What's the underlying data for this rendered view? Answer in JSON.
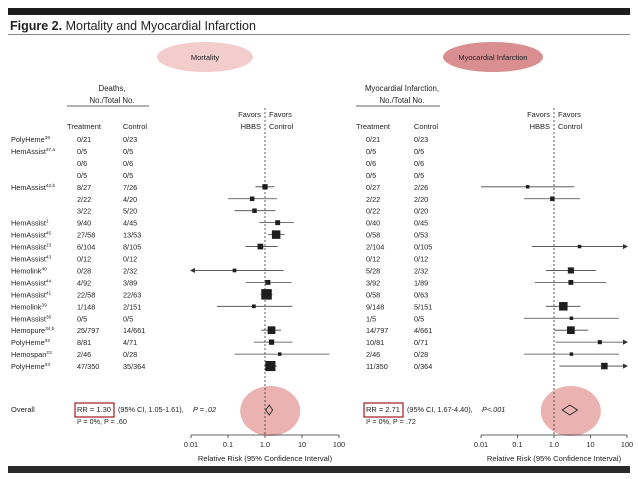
{
  "figure": {
    "label": "Figure 2.",
    "title": "Mortality and Myocardial Infarction"
  },
  "colors": {
    "mortality_oval": "#f3cccc",
    "mi_oval": "#d98f8f",
    "highlight_oval": "#e8a5a5",
    "box_outline": "#a01c1c",
    "ink": "#222222"
  },
  "studies": [
    {
      "name": "PolyHeme",
      "sup": "38"
    },
    {
      "name": "HemAssist",
      "sup": "37,a"
    },
    {
      "name": "",
      "sup": ""
    },
    {
      "name": "",
      "sup": ""
    },
    {
      "name": "HemAssist",
      "sup": "42,b"
    },
    {
      "name": "",
      "sup": ""
    },
    {
      "name": "",
      "sup": ""
    },
    {
      "name": "HemAssist",
      "sup": "1"
    },
    {
      "name": "HemAssist",
      "sup": "45"
    },
    {
      "name": "HemAssist",
      "sup": "13"
    },
    {
      "name": "HemAssist",
      "sup": "43"
    },
    {
      "name": "Hemolink",
      "sup": "40"
    },
    {
      "name": "HemAssist",
      "sup": "44"
    },
    {
      "name": "HemAssist",
      "sup": "41"
    },
    {
      "name": "Hemolink",
      "sup": "39"
    },
    {
      "name": "HemAssist",
      "sup": "36"
    },
    {
      "name": "Hemopure",
      "sup": "34,b"
    },
    {
      "name": "PolyHeme",
      "sup": "32"
    },
    {
      "name": "Hemospan",
      "sup": "23"
    },
    {
      "name": "PolyHeme",
      "sup": "33"
    }
  ],
  "chart_data": [
    {
      "type": "forest",
      "panel_title": "Mortality",
      "header": [
        "Deaths,",
        "No./Total No."
      ],
      "col_labels": [
        "Treatment",
        "Control"
      ],
      "favors": {
        "left": [
          "Favors",
          "HBBS"
        ],
        "right": [
          "Favors",
          "Control"
        ]
      },
      "treatment": [
        "0/21",
        "0/5",
        "0/6",
        "0/5",
        "8/27",
        "2/22",
        "3/22",
        "9/40",
        "27/58",
        "6/104",
        "0/12",
        "0/28",
        "4/92",
        "22/58",
        "1/148",
        "0/5",
        "25/797",
        "8/81",
        "2/46",
        "47/350"
      ],
      "control": [
        "0/23",
        "0/5",
        "0/6",
        "0/5",
        "7/26",
        "4/20",
        "5/20",
        "4/45",
        "13/53",
        "8/105",
        "0/12",
        "2/32",
        "3/89",
        "22/63",
        "2/151",
        "0/5",
        "14/661",
        "4/71",
        "0/28",
        "35/364"
      ],
      "rr": [
        null,
        null,
        null,
        null,
        1.0,
        0.45,
        0.52,
        2.2,
        2.0,
        0.75,
        null,
        0.15,
        1.2,
        1.1,
        0.5,
        null,
        1.5,
        1.5,
        2.5,
        1.4
      ],
      "low": [
        null,
        null,
        null,
        null,
        0.55,
        0.1,
        0.15,
        0.7,
        1.2,
        0.3,
        null,
        0.008,
        0.3,
        0.75,
        0.05,
        null,
        0.8,
        0.5,
        0.15,
        0.95
      ],
      "high": [
        null,
        null,
        null,
        null,
        1.8,
        2.1,
        1.9,
        6,
        3.4,
        2.2,
        null,
        3.2,
        5.2,
        1.6,
        5.5,
        null,
        2.7,
        5.5,
        55,
        2.1
      ],
      "weight": [
        0,
        0,
        0,
        0,
        0.35,
        0.25,
        0.25,
        0.3,
        0.75,
        0.4,
        0,
        0.15,
        0.3,
        1.0,
        0.15,
        0,
        0.65,
        0.35,
        0.12,
        0.95
      ],
      "overall": {
        "label": "Overall",
        "rr": 1.3,
        "low": 1.05,
        "high": 1.61,
        "rr_text": "RR = 1.30",
        "ci_text": "(95% CI, 1.05-1.61),",
        "p_text": "P = .02",
        "i2_text": "I² = 0%, P = .60"
      },
      "x_ticks": [
        0.01,
        0.1,
        1.0,
        10,
        100
      ],
      "x_tick_labels": [
        "0.01",
        "0.1",
        "1.0",
        "10",
        "100"
      ],
      "xlabel": "Relative Risk (95% Confidence Interval)",
      "scale": "log"
    },
    {
      "type": "forest",
      "panel_title": "Myocardial Infarction",
      "header": [
        "Myocardial Infarction,",
        "No./Total No."
      ],
      "col_labels": [
        "Treatment",
        "Control"
      ],
      "favors": {
        "left": [
          "Favors",
          "HBBS"
        ],
        "right": [
          "Favors",
          "Control"
        ]
      },
      "treatment": [
        "0/21",
        "0/5",
        "0/6",
        "0/5",
        "0/27",
        "2/22",
        "0/22",
        "0/40",
        "0/58",
        "2/104",
        "0/12",
        "5/28",
        "3/92",
        "0/58",
        "9/148",
        "1/5",
        "14/797",
        "10/81",
        "2/46",
        "11/350"
      ],
      "control": [
        "0/23",
        "0/5",
        "0/6",
        "0/5",
        "2/26",
        "2/20",
        "0/20",
        "0/45",
        "0/53",
        "0/105",
        "0/12",
        "2/32",
        "1/89",
        "0/63",
        "5/151",
        "0/5",
        "4/661",
        "0/71",
        "0/28",
        "0/364"
      ],
      "rr": [
        null,
        null,
        null,
        null,
        0.19,
        0.9,
        null,
        null,
        null,
        5.0,
        null,
        2.9,
        2.9,
        null,
        1.8,
        3.0,
        2.9,
        18,
        3.0,
        24
      ],
      "low": [
        null,
        null,
        null,
        null,
        0.01,
        0.15,
        null,
        null,
        null,
        0.25,
        null,
        0.6,
        0.3,
        null,
        0.6,
        0.15,
        1.0,
        1.1,
        0.15,
        1.4
      ],
      "high": [
        null,
        null,
        null,
        null,
        3.6,
        5.2,
        null,
        null,
        null,
        100,
        null,
        14,
        27,
        null,
        5.3,
        60,
        8.7,
        100,
        60,
        100
      ],
      "weight": [
        0,
        0,
        0,
        0,
        0.12,
        0.25,
        0,
        0,
        0,
        0.12,
        0,
        0.45,
        0.3,
        0,
        0.75,
        0.12,
        0.65,
        0.2,
        0.12,
        0.5
      ],
      "overall": {
        "label": "Overall",
        "rr": 2.71,
        "low": 1.67,
        "high": 4.4,
        "rr_text": "RR = 2.71",
        "ci_text": "(95% CI, 1.67-4.40),",
        "p_text": "P<.001",
        "i2_text": "I² = 0%, P = .72"
      },
      "x_ticks": [
        0.01,
        0.1,
        1.0,
        10,
        100
      ],
      "x_tick_labels": [
        "0.01",
        "0.1",
        "1.0",
        "10",
        "100"
      ],
      "xlabel": "Relative Risk (95% Confidence Interval)",
      "scale": "log"
    }
  ]
}
